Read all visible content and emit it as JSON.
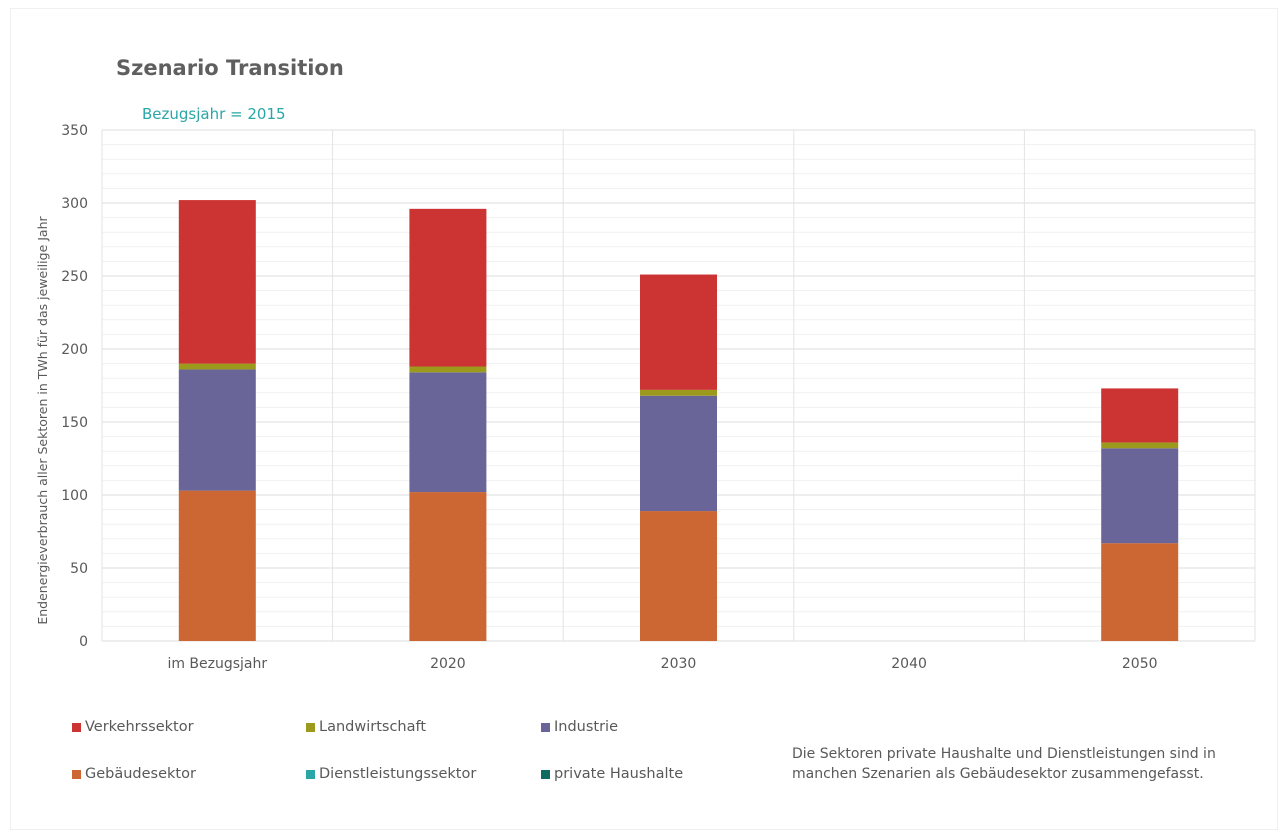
{
  "chart_data": {
    "type": "bar",
    "stacked": true,
    "title": "Szenario Transition",
    "subtitle": "Bezugsjahr = 2015",
    "ylabel": "Endenergieverbrauch aller Sektoren in TWh für das jeweilige Jahr",
    "xlabel": "",
    "ylim": [
      0,
      350
    ],
    "yticks": [
      0,
      50,
      100,
      150,
      200,
      250,
      300,
      350
    ],
    "grid": true,
    "legend_position": "bottom",
    "categories": [
      "im Bezugsjahr",
      "2020",
      "2030",
      "2040",
      "2050"
    ],
    "series": [
      {
        "name": "Gebäudesektor",
        "color": "#cc6633",
        "values": [
          103,
          102,
          89,
          0,
          67
        ]
      },
      {
        "name": "Dienstleistungssektor",
        "color": "#2aa6a6",
        "values": [
          0,
          0,
          0,
          0,
          0
        ]
      },
      {
        "name": "private Haushalte",
        "color": "#0f6b5e",
        "values": [
          0,
          0,
          0,
          0,
          0
        ]
      },
      {
        "name": "Industrie",
        "color": "#6a6599",
        "values": [
          83,
          82,
          79,
          0,
          65
        ]
      },
      {
        "name": "Landwirtschaft",
        "color": "#9c9a1c",
        "values": [
          4,
          4,
          4,
          0,
          4
        ]
      },
      {
        "name": "Verkehrssektor",
        "color": "#cc3333",
        "values": [
          112,
          108,
          79,
          0,
          37
        ]
      }
    ]
  },
  "legend": [
    {
      "label": "Verkehrssektor",
      "color": "#cc3333"
    },
    {
      "label": "Landwirtschaft",
      "color": "#9c9a1c"
    },
    {
      "label": "Industrie",
      "color": "#6a6599"
    },
    {
      "label": "Gebäudesektor",
      "color": "#cc6633"
    },
    {
      "label": "Dienstleistungssektor",
      "color": "#2aa6a6"
    },
    {
      "label": "private Haushalte",
      "color": "#0f6b5e"
    }
  ],
  "note": {
    "line1": "Die Sektoren private Haushalte und Dienstleistungen sind in",
    "line2": "manchen Szenarien als Gebäudesektor zusammengefasst."
  }
}
